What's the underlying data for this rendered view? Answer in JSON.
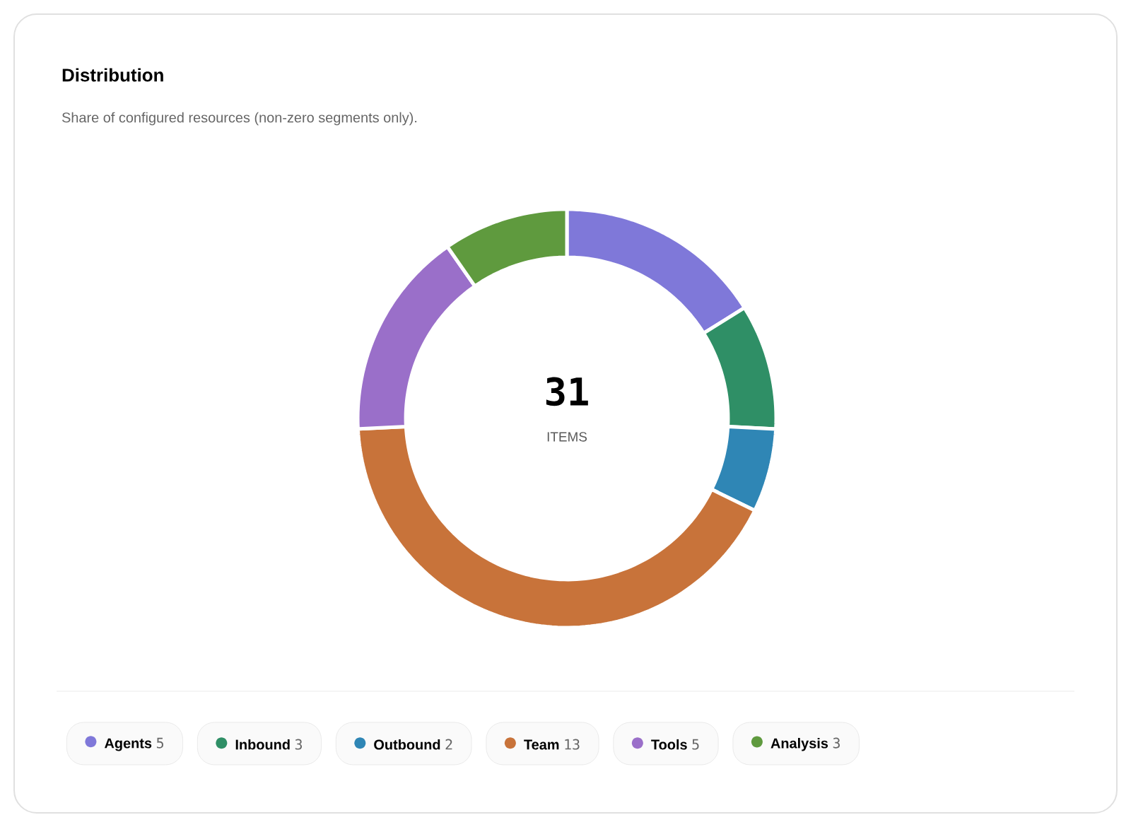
{
  "chart_data": {
    "type": "donut",
    "title": "Distribution",
    "subtitle": "Share of configured resources (non-zero segments only).",
    "categories": [
      "Agents",
      "Inbound",
      "Outbound",
      "Team",
      "Tools",
      "Analysis"
    ],
    "values": [
      5,
      3,
      2,
      13,
      5,
      3
    ],
    "colors": [
      "#7f78d9",
      "#2f8f66",
      "#2f86b5",
      "#c8733a",
      "#9a6fc9",
      "#5f9a3e"
    ],
    "data_labels": true,
    "legend": "bottom",
    "annotations": [
      "31",
      "ITEMS"
    ]
  }
}
